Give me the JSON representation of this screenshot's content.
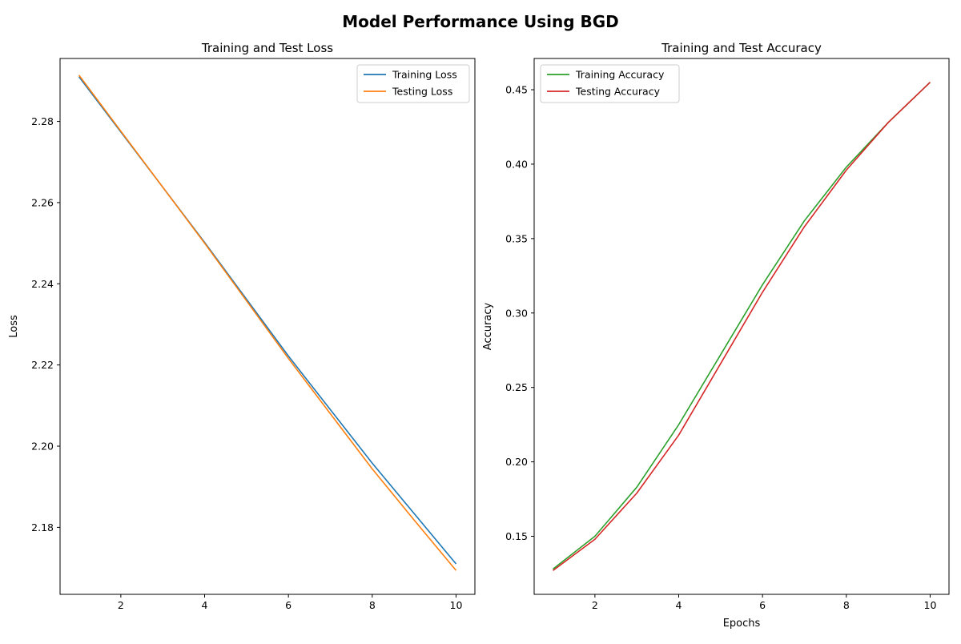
{
  "suptitle": "Model Performance Using BGD",
  "chart_data": [
    {
      "type": "line",
      "title": "Training and Test Loss",
      "xlabel": "",
      "ylabel": "Loss",
      "xlim": [
        0.55,
        10.45
      ],
      "ylim": [
        2.1635,
        2.2955
      ],
      "xticks": [
        2,
        4,
        6,
        8,
        10
      ],
      "yticks": [
        2.18,
        2.2,
        2.22,
        2.24,
        2.26,
        2.28
      ],
      "grid": false,
      "legend": "upper-right",
      "x": [
        1,
        2,
        3,
        4,
        5,
        6,
        7,
        8,
        9,
        10
      ],
      "series": [
        {
          "name": "Training Loss",
          "color": "#1f77b4",
          "values": [
            2.291,
            2.2774,
            2.2638,
            2.2502,
            2.2362,
            2.2222,
            2.209,
            2.1958,
            2.1834,
            2.171
          ]
        },
        {
          "name": "Testing Loss",
          "color": "#ff7f0e",
          "values": [
            2.2914,
            2.2776,
            2.2638,
            2.25,
            2.2358,
            2.2216,
            2.208,
            2.1944,
            2.1818,
            2.1694
          ]
        }
      ]
    },
    {
      "type": "line",
      "title": "Training and Test Accuracy",
      "xlabel": "Epochs",
      "ylabel": "Accuracy",
      "xlim": [
        0.55,
        10.45
      ],
      "ylim": [
        0.111,
        0.471
      ],
      "xticks": [
        2,
        4,
        6,
        8,
        10
      ],
      "yticks": [
        0.15,
        0.2,
        0.25,
        0.3,
        0.35,
        0.4,
        0.45
      ],
      "grid": false,
      "legend": "upper-left",
      "x": [
        1,
        2,
        3,
        4,
        5,
        6,
        7,
        8,
        9,
        10
      ],
      "series": [
        {
          "name": "Training Accuracy",
          "color": "#2ca02c",
          "values": [
            0.128,
            0.15,
            0.183,
            0.225,
            0.272,
            0.319,
            0.362,
            0.398,
            0.428,
            0.455
          ]
        },
        {
          "name": "Testing Accuracy",
          "color": "#d62728",
          "values": [
            0.127,
            0.148,
            0.179,
            0.218,
            0.266,
            0.314,
            0.358,
            0.396,
            0.428,
            0.455
          ]
        }
      ]
    }
  ]
}
